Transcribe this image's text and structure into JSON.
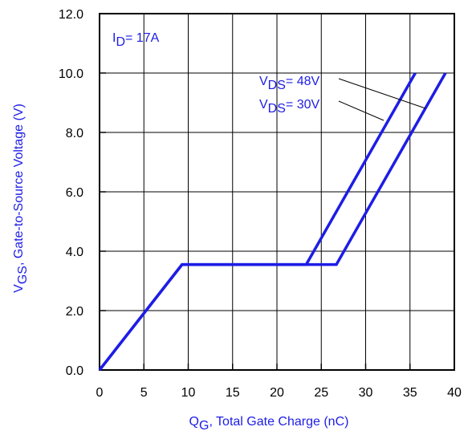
{
  "colors": {
    "series": "#1d1de6",
    "text_blue": "#1d1de6",
    "axis": "#000000",
    "grid": "#000000"
  },
  "chart_data": {
    "type": "line",
    "title": "",
    "xlabel": {
      "main": "Q",
      "sub": "G",
      "rest": ",  Total Gate Charge (nC)"
    },
    "ylabel": {
      "main": "V",
      "sub": "GS",
      "rest": ",  Gate-to-Source Voltage (V)"
    },
    "xlim": [
      0,
      40
    ],
    "ylim": [
      0,
      12
    ],
    "x_ticks": [
      "0",
      "5",
      "10",
      "15",
      "20",
      "25",
      "30",
      "35",
      "40"
    ],
    "y_ticks": [
      "0.0",
      "2.0",
      "4.0",
      "6.0",
      "8.0",
      "10.0",
      "12.0"
    ],
    "grid": true,
    "annotations": {
      "id": {
        "main": "I",
        "sub": "D",
        "rest": "= 17A"
      },
      "vds48": {
        "main": "V",
        "sub": "DS",
        "rest": "= 48V"
      },
      "vds30": {
        "main": "V",
        "sub": "DS",
        "rest": "= 30V"
      }
    },
    "series": [
      {
        "x": [
          0,
          9.3,
          23.3,
          35.6
        ],
        "y": [
          0,
          3.55,
          3.55,
          10.0
        ]
      },
      {
        "x": [
          0,
          9.3,
          26.7,
          39.0
        ],
        "y": [
          0,
          3.55,
          3.55,
          10.0
        ]
      }
    ]
  }
}
